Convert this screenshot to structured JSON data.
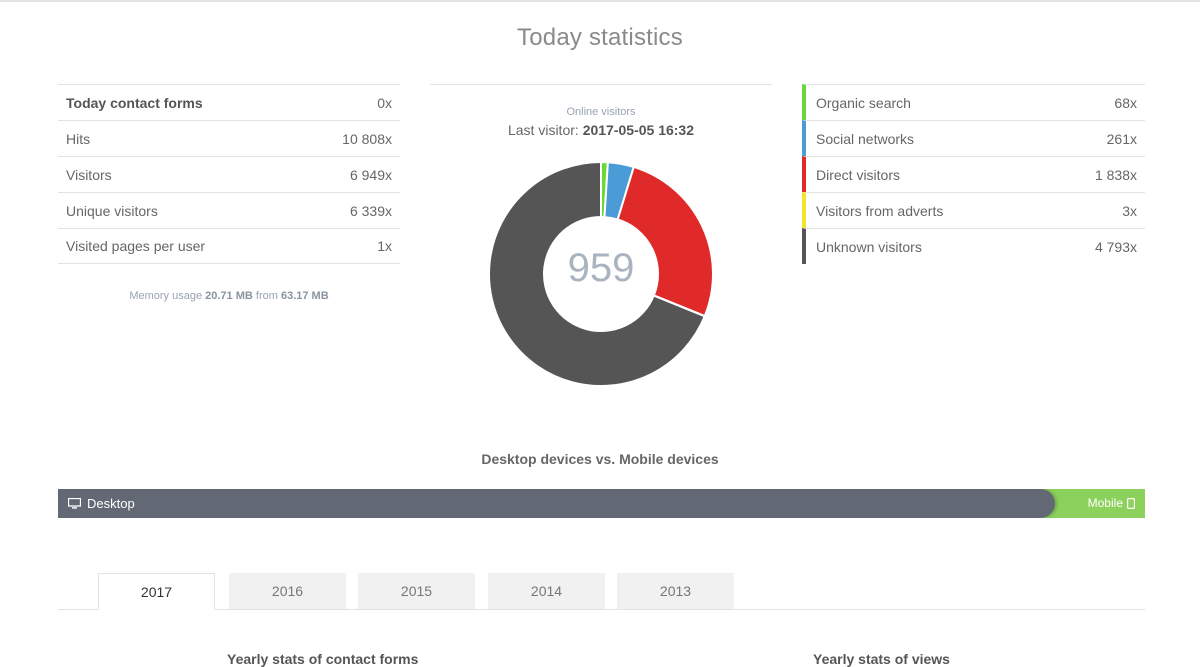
{
  "title": "Today statistics",
  "left_stats": [
    {
      "label": "Today contact forms",
      "value": "0x",
      "bold": true
    },
    {
      "label": "Hits",
      "value": "10 808x"
    },
    {
      "label": "Visitors",
      "value": "6 949x"
    },
    {
      "label": "Unique visitors",
      "value": "6 339x"
    },
    {
      "label": "Visited pages per user",
      "value": "1x"
    }
  ],
  "memory": {
    "prefix": "Memory usage",
    "used": "20.71 MB",
    "sep": "from",
    "total": "63.17 MB"
  },
  "online": {
    "label": "Online visitors",
    "last_visitor_label": "Last visitor:",
    "last_visitor_time": "2017-05-05 16:32",
    "count": "959"
  },
  "sources": [
    {
      "label": "Organic search",
      "value": "68x",
      "color": "#6ad83a",
      "count": 68
    },
    {
      "label": "Social networks",
      "value": "261x",
      "color": "#4a9bd6",
      "count": 261
    },
    {
      "label": "Direct visitors",
      "value": "1 838x",
      "color": "#e02a2a",
      "count": 1838
    },
    {
      "label": "Visitors from adverts",
      "value": "3x",
      "color": "#f2e52e",
      "count": 3
    },
    {
      "label": "Unknown visitors",
      "value": "4 793x",
      "color": "#555555",
      "count": 4793
    }
  ],
  "devices": {
    "title": "Desktop devices vs. Mobile devices",
    "desktop_label": "Desktop",
    "mobile_label": "Mobile",
    "desktop_fraction": 0.917
  },
  "tabs": [
    {
      "label": "2017",
      "active": true
    },
    {
      "label": "2016"
    },
    {
      "label": "2015"
    },
    {
      "label": "2014"
    },
    {
      "label": "2013"
    }
  ],
  "sections": {
    "contact_forms": "Yearly stats of contact forms",
    "views": "Yearly stats of views"
  }
}
